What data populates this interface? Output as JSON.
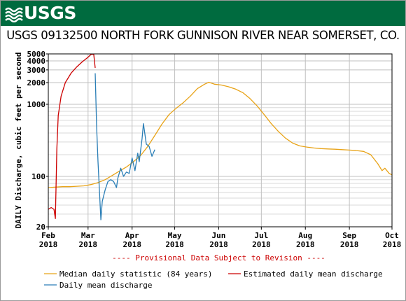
{
  "header": {
    "logo_text": "USGS",
    "brand_color": "#006b3f",
    "logo_icon": "usgs-wave-icon"
  },
  "chart_data": {
    "type": "line",
    "title": "USGS 09132500 NORTH FORK GUNNISON RIVER NEAR SOMERSET, CO.",
    "ylabel": "DAILY Discharge, cubic feet per second",
    "xlabel": "",
    "yscale": "log",
    "ylim": [
      20,
      5000
    ],
    "xlim": [
      "2018-02-01",
      "2018-10-01"
    ],
    "grid": true,
    "y_ticks": [
      20,
      100,
      1000,
      2000,
      3000,
      4000,
      5000
    ],
    "x_ticks": [
      {
        "date": "2018-02-01",
        "label": [
          "Feb",
          "2018"
        ]
      },
      {
        "date": "2018-03-01",
        "label": [
          "Mar",
          "2018"
        ]
      },
      {
        "date": "2018-04-01",
        "label": [
          "Apr",
          "2018"
        ]
      },
      {
        "date": "2018-05-01",
        "label": [
          "May",
          "2018"
        ]
      },
      {
        "date": "2018-06-01",
        "label": [
          "Jun",
          "2018"
        ]
      },
      {
        "date": "2018-07-01",
        "label": [
          "Jul",
          "2018"
        ]
      },
      {
        "date": "2018-08-01",
        "label": [
          "Aug",
          "2018"
        ]
      },
      {
        "date": "2018-09-01",
        "label": [
          "Sep",
          "2018"
        ]
      },
      {
        "date": "2018-10-01",
        "label": [
          "Oct",
          "2018"
        ]
      }
    ],
    "annotation": "---- Provisional Data Subject to Revision ----",
    "legend_position": "bottom",
    "series": [
      {
        "name": "Median daily statistic (84 years)",
        "color": "#e8a317",
        "points": [
          [
            "2018-02-01",
            70
          ],
          [
            "2018-02-06",
            71
          ],
          [
            "2018-02-11",
            72
          ],
          [
            "2018-02-16",
            72
          ],
          [
            "2018-02-21",
            73
          ],
          [
            "2018-02-26",
            74
          ],
          [
            "2018-03-03",
            77
          ],
          [
            "2018-03-08",
            82
          ],
          [
            "2018-03-13",
            90
          ],
          [
            "2018-03-18",
            103
          ],
          [
            "2018-03-23",
            118
          ],
          [
            "2018-03-28",
            135
          ],
          [
            "2018-04-02",
            160
          ],
          [
            "2018-04-07",
            195
          ],
          [
            "2018-04-12",
            260
          ],
          [
            "2018-04-17",
            370
          ],
          [
            "2018-04-22",
            530
          ],
          [
            "2018-04-27",
            720
          ],
          [
            "2018-05-02",
            880
          ],
          [
            "2018-05-07",
            1050
          ],
          [
            "2018-05-12",
            1300
          ],
          [
            "2018-05-17",
            1650
          ],
          [
            "2018-05-22",
            1900
          ],
          [
            "2018-05-25",
            2020
          ],
          [
            "2018-05-29",
            1900
          ],
          [
            "2018-06-03",
            1850
          ],
          [
            "2018-06-08",
            1750
          ],
          [
            "2018-06-13",
            1620
          ],
          [
            "2018-06-18",
            1450
          ],
          [
            "2018-06-23",
            1200
          ],
          [
            "2018-06-28",
            950
          ],
          [
            "2018-07-03",
            720
          ],
          [
            "2018-07-08",
            540
          ],
          [
            "2018-07-13",
            420
          ],
          [
            "2018-07-18",
            340
          ],
          [
            "2018-07-23",
            290
          ],
          [
            "2018-07-28",
            265
          ],
          [
            "2018-08-02",
            255
          ],
          [
            "2018-08-07",
            248
          ],
          [
            "2018-08-12",
            243
          ],
          [
            "2018-08-17",
            240
          ],
          [
            "2018-08-22",
            238
          ],
          [
            "2018-08-27",
            235
          ],
          [
            "2018-09-01",
            232
          ],
          [
            "2018-09-06",
            228
          ],
          [
            "2018-09-11",
            222
          ],
          [
            "2018-09-16",
            200
          ],
          [
            "2018-09-21",
            150
          ],
          [
            "2018-09-24",
            120
          ],
          [
            "2018-09-26",
            130
          ],
          [
            "2018-09-29",
            110
          ],
          [
            "2018-10-01",
            105
          ]
        ]
      },
      {
        "name": "Estimated daily mean discharge",
        "color": "#cc0000",
        "points": [
          [
            "2018-02-01",
            35
          ],
          [
            "2018-02-03",
            37
          ],
          [
            "2018-02-05",
            35
          ],
          [
            "2018-02-06",
            26
          ],
          [
            "2018-02-07",
            240
          ],
          [
            "2018-02-08",
            700
          ],
          [
            "2018-02-10",
            1300
          ],
          [
            "2018-02-13",
            2000
          ],
          [
            "2018-02-17",
            2700
          ],
          [
            "2018-02-21",
            3300
          ],
          [
            "2018-02-25",
            3900
          ],
          [
            "2018-03-01",
            4500
          ],
          [
            "2018-03-03",
            4900
          ],
          [
            "2018-03-05",
            4950
          ],
          [
            "2018-03-06",
            3200
          ]
        ]
      },
      {
        "name": "Daily mean discharge",
        "color": "#2a7eb6",
        "points": [
          [
            "2018-03-06",
            2700
          ],
          [
            "2018-03-07",
            500
          ],
          [
            "2018-03-08",
            160
          ],
          [
            "2018-03-09",
            65
          ],
          [
            "2018-03-10",
            25
          ],
          [
            "2018-03-11",
            45
          ],
          [
            "2018-03-13",
            65
          ],
          [
            "2018-03-15",
            85
          ],
          [
            "2018-03-17",
            90
          ],
          [
            "2018-03-19",
            85
          ],
          [
            "2018-03-21",
            70
          ],
          [
            "2018-03-22",
            95
          ],
          [
            "2018-03-24",
            130
          ],
          [
            "2018-03-26",
            100
          ],
          [
            "2018-03-28",
            115
          ],
          [
            "2018-03-30",
            110
          ],
          [
            "2018-04-01",
            180
          ],
          [
            "2018-04-03",
            120
          ],
          [
            "2018-04-05",
            210
          ],
          [
            "2018-04-06",
            160
          ],
          [
            "2018-04-08",
            330
          ],
          [
            "2018-04-09",
            540
          ],
          [
            "2018-04-11",
            280
          ],
          [
            "2018-04-13",
            260
          ],
          [
            "2018-04-15",
            190
          ],
          [
            "2018-04-17",
            235
          ]
        ]
      }
    ]
  }
}
